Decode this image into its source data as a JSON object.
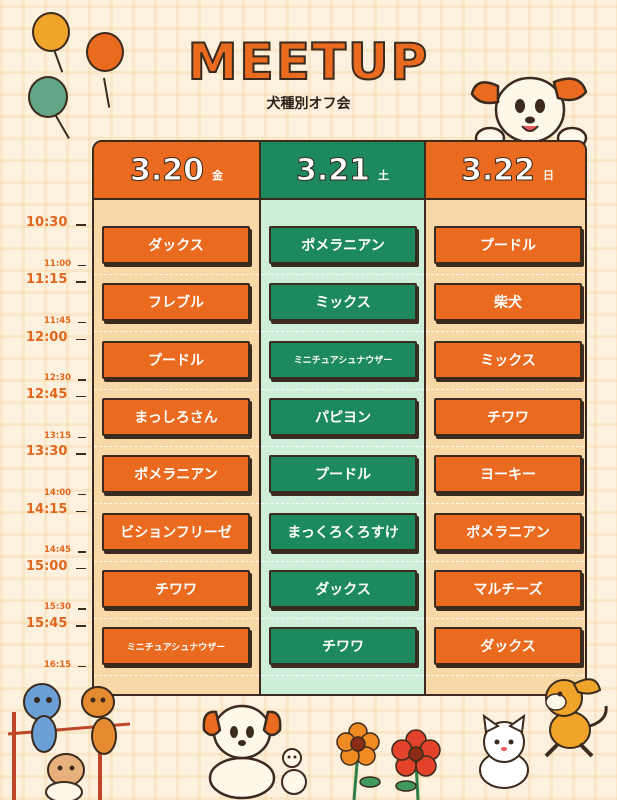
{
  "header": {
    "title": "MEETUP",
    "subtitle": "犬種別オフ会"
  },
  "colors": {
    "orange": "#ea6a1f",
    "green": "#1c8a5c",
    "background": "#fbf1de",
    "outline": "#3b2a1e"
  },
  "times": {
    "major": [
      "10:30",
      "11:15",
      "12:00",
      "12:45",
      "13:30",
      "14:15",
      "15:00",
      "15:45"
    ],
    "minor": [
      "11:00",
      "11:45",
      "12:30",
      "13:15",
      "14:00",
      "14:45",
      "15:30",
      "16:15"
    ]
  },
  "days": [
    {
      "date": "3.20",
      "dow": "金",
      "color": "orange",
      "slots": [
        "ダックス",
        "フレブル",
        "プードル",
        "まっしろさん",
        "ポメラニアン",
        "ビションフリーゼ",
        "チワワ",
        "ミニチュアシュナウザー"
      ]
    },
    {
      "date": "3.21",
      "dow": "土",
      "color": "green",
      "slots": [
        "ポメラニアン",
        "ミックス",
        "ミニチュアシュナウザー",
        "パピヨン",
        "プードル",
        "まっくろくろすけ",
        "ダックス",
        "チワワ"
      ]
    },
    {
      "date": "3.22",
      "dow": "日",
      "color": "orange",
      "slots": [
        "プードル",
        "柴犬",
        "ミックス",
        "チワワ",
        "ヨーキー",
        "ポメラニアン",
        "マルチーズ",
        "ダックス"
      ]
    }
  ],
  "illustrations": [
    "balloons-icon",
    "puppy-peeking-icon",
    "dogs-group-icon",
    "puppy-sitting-icon",
    "flowers-icon",
    "cat-icon",
    "running-dog-icon"
  ]
}
